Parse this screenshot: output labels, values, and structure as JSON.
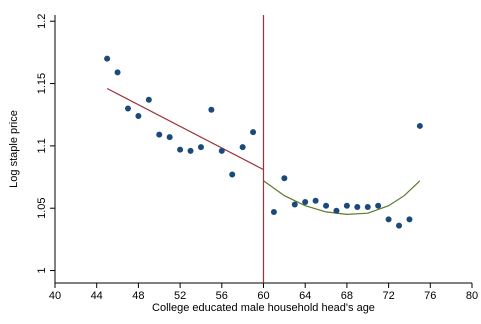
{
  "chart_data": {
    "type": "scatter",
    "xlabel": "College educated male household head's age",
    "ylabel": "Log staple price",
    "xlim": [
      40,
      80
    ],
    "ylim": [
      0.99,
      1.205
    ],
    "x_ticks": [
      40,
      44,
      48,
      52,
      56,
      60,
      64,
      68,
      72,
      76,
      80
    ],
    "y_ticks": [
      1,
      1.05,
      1.1,
      1.15,
      1.2
    ],
    "y_tick_labels": [
      "1",
      "1.05",
      "1.1",
      "1.15",
      "1.2"
    ],
    "grid": false,
    "legend": "none",
    "cutoff": 60,
    "points": [
      {
        "x": 45,
        "y": 1.17
      },
      {
        "x": 46,
        "y": 1.159
      },
      {
        "x": 47,
        "y": 1.13
      },
      {
        "x": 48,
        "y": 1.124
      },
      {
        "x": 49,
        "y": 1.137
      },
      {
        "x": 50,
        "y": 1.109
      },
      {
        "x": 51,
        "y": 1.107
      },
      {
        "x": 52,
        "y": 1.097
      },
      {
        "x": 53,
        "y": 1.096
      },
      {
        "x": 54,
        "y": 1.099
      },
      {
        "x": 55,
        "y": 1.129
      },
      {
        "x": 56,
        "y": 1.096
      },
      {
        "x": 57,
        "y": 1.077
      },
      {
        "x": 58,
        "y": 1.099
      },
      {
        "x": 59,
        "y": 1.111
      },
      {
        "x": 61,
        "y": 1.047
      },
      {
        "x": 62,
        "y": 1.074
      },
      {
        "x": 63,
        "y": 1.053
      },
      {
        "x": 64,
        "y": 1.055
      },
      {
        "x": 65,
        "y": 1.056
      },
      {
        "x": 66,
        "y": 1.052
      },
      {
        "x": 67,
        "y": 1.048
      },
      {
        "x": 68,
        "y": 1.052
      },
      {
        "x": 69,
        "y": 1.051
      },
      {
        "x": 70,
        "y": 1.051
      },
      {
        "x": 71,
        "y": 1.052
      },
      {
        "x": 72,
        "y": 1.041
      },
      {
        "x": 73,
        "y": 1.036
      },
      {
        "x": 74,
        "y": 1.041
      },
      {
        "x": 75,
        "y": 1.116
      }
    ],
    "fit_left": [
      {
        "x": 45,
        "y": 1.146
      },
      {
        "x": 60,
        "y": 1.081
      }
    ],
    "fit_right": [
      {
        "x": 60,
        "y": 1.072
      },
      {
        "x": 62,
        "y": 1.06
      },
      {
        "x": 64,
        "y": 1.052
      },
      {
        "x": 66,
        "y": 1.047
      },
      {
        "x": 68,
        "y": 1.045
      },
      {
        "x": 70,
        "y": 1.046
      },
      {
        "x": 72,
        "y": 1.052
      },
      {
        "x": 73.5,
        "y": 1.06
      },
      {
        "x": 75,
        "y": 1.072
      }
    ],
    "colors": {
      "points": "#1a4a7a",
      "fit_left": "#a0303a",
      "fit_right": "#5b7a2a",
      "cutoff_line": "#a0303a"
    }
  }
}
